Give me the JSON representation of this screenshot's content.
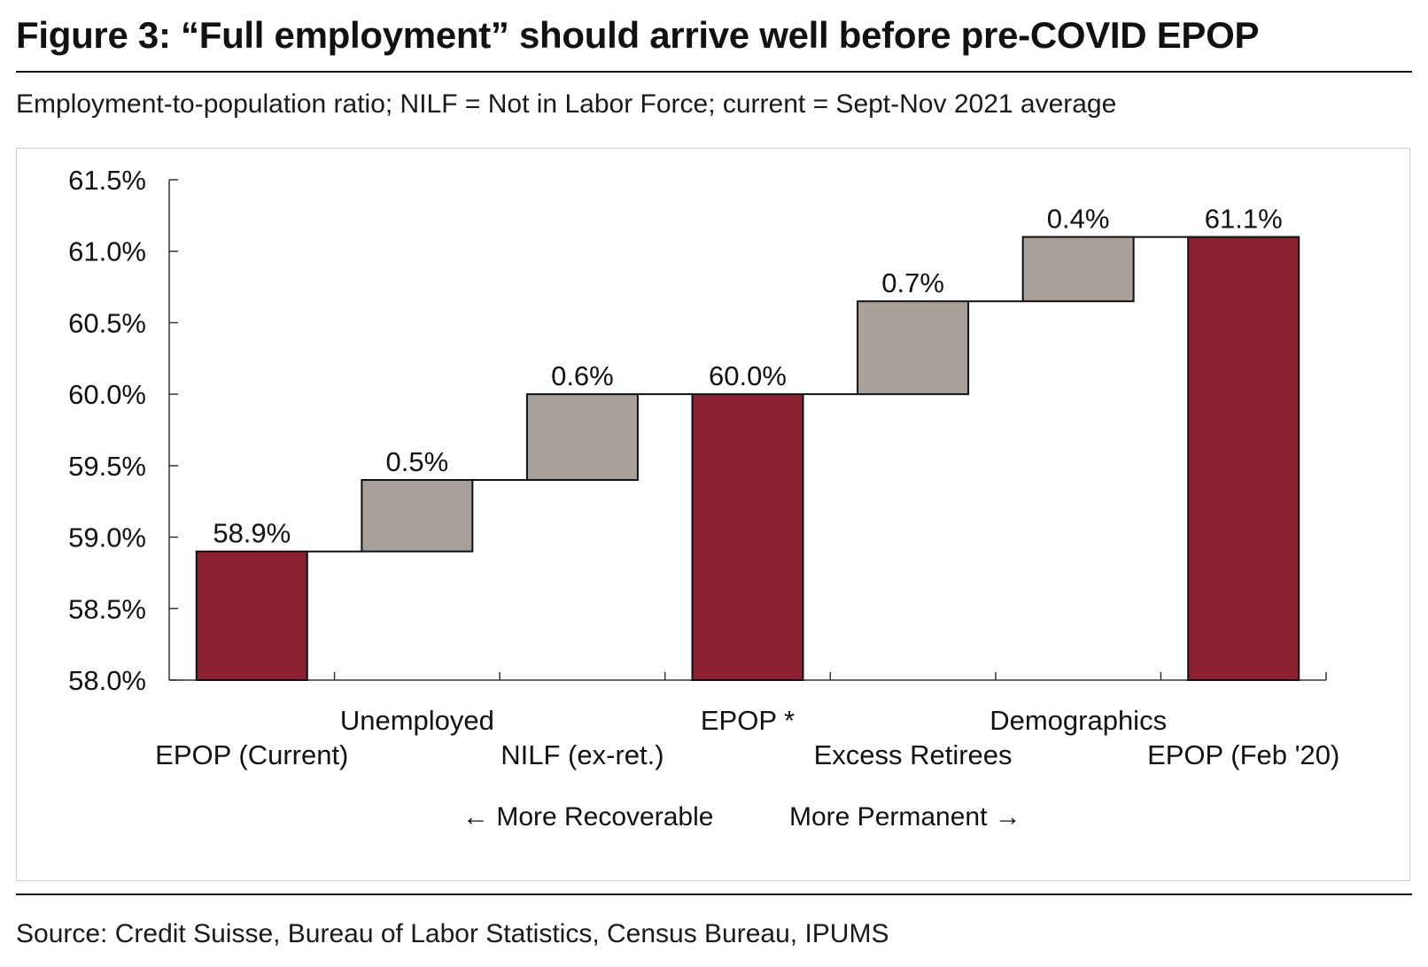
{
  "header": {
    "title": "Figure 3: “Full employment” should arrive well before pre-COVID EPOP",
    "subtitle": "Employment-to-population ratio; NILF = Not in Labor Force; current = Sept-Nov 2021 average"
  },
  "footer": {
    "source": "Source: Credit Suisse, Bureau of Labor Statistics, Census Bureau, IPUMS"
  },
  "colors": {
    "total_bar": "#8b2231",
    "step_bar": "#a8a09b",
    "outline": "#111111"
  },
  "chart_data": {
    "type": "waterfall",
    "ylim": [
      58.0,
      61.5
    ],
    "yticks": [
      58.0,
      58.5,
      59.0,
      59.5,
      60.0,
      60.5,
      61.0,
      61.5
    ],
    "ytick_labels": [
      "58.0%",
      "58.5%",
      "59.0%",
      "59.5%",
      "60.0%",
      "60.5%",
      "61.0%",
      "61.5%"
    ],
    "bars": [
      {
        "category": "EPOP (Current)",
        "kind": "total",
        "start": 58.0,
        "end": 58.9,
        "label": "58.9%",
        "label_row": 2
      },
      {
        "category": "Unemployed",
        "kind": "step",
        "start": 58.9,
        "end": 59.4,
        "label": "0.5%",
        "label_row": 1
      },
      {
        "category": "NILF (ex-ret.)",
        "kind": "step",
        "start": 59.4,
        "end": 60.0,
        "label": "0.6%",
        "label_row": 2
      },
      {
        "category": "EPOP *",
        "kind": "total",
        "start": 58.0,
        "end": 60.0,
        "label": "60.0%",
        "label_row": 1
      },
      {
        "category": "Excess Retirees",
        "kind": "step",
        "start": 60.0,
        "end": 60.65,
        "label": "0.7%",
        "label_row": 2
      },
      {
        "category": "Demographics",
        "kind": "step",
        "start": 60.65,
        "end": 61.1,
        "label": "0.4%",
        "label_row": 1
      },
      {
        "category": "EPOP (Feb '20)",
        "kind": "total",
        "start": 58.0,
        "end": 61.1,
        "label": "61.1%",
        "label_row": 2
      }
    ],
    "annotations": {
      "left_arrow": "← More Recoverable",
      "right_arrow": "More Permanent →"
    }
  }
}
